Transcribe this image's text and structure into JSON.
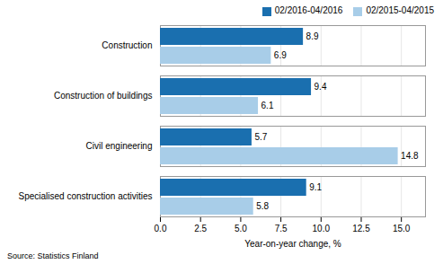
{
  "chart_data": {
    "type": "bar",
    "orientation": "horizontal",
    "categories": [
      "Construction",
      "Construction of buildings",
      "Civil engineering",
      "Specialised construction activities"
    ],
    "series": [
      {
        "name": "02/2016-04/2016",
        "color": "#1a6faf",
        "values": [
          8.9,
          9.4,
          5.7,
          9.1
        ]
      },
      {
        "name": "02/2015-04/2015",
        "color": "#a8cde8",
        "values": [
          6.9,
          6.1,
          14.8,
          5.8
        ]
      }
    ],
    "xlabel": "Year-on-year change, %",
    "xlim": [
      0,
      16.5
    ],
    "xticks": [
      {
        "value": 0.0,
        "label": "0.0"
      },
      {
        "value": 2.5,
        "label": "2.5"
      },
      {
        "value": 5.0,
        "label": "5.0"
      },
      {
        "value": 7.5,
        "label": "7.5"
      },
      {
        "value": 10.0,
        "label": "10.0"
      },
      {
        "value": 12.5,
        "label": "12.5"
      },
      {
        "value": 15.0,
        "label": "15.0"
      }
    ],
    "grid": true,
    "legend": "upper right",
    "data_labels": true,
    "caption": "Source: Statistics Finland"
  }
}
